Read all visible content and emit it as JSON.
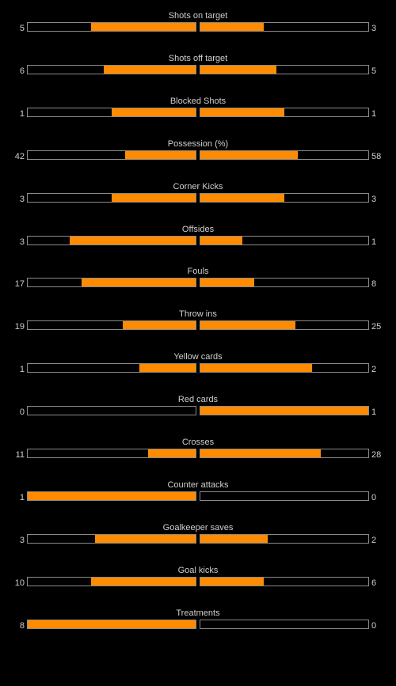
{
  "colors": {
    "background": "#000000",
    "text": "#cfcfcf",
    "bar_border": "#8a8a8a",
    "bar_fill": "#ff8c00"
  },
  "stats": [
    {
      "label": "Shots on target",
      "home": 5,
      "away": 3,
      "home_display": "5",
      "away_display": "3"
    },
    {
      "label": "Shots off target",
      "home": 6,
      "away": 5,
      "home_display": "6",
      "away_display": "5"
    },
    {
      "label": "Blocked Shots",
      "home": 1,
      "away": 1,
      "home_display": "1",
      "away_display": "1"
    },
    {
      "label": "Possession (%)",
      "home": 42,
      "away": 58,
      "home_display": "42",
      "away_display": "58"
    },
    {
      "label": "Corner Kicks",
      "home": 3,
      "away": 3,
      "home_display": "3",
      "away_display": "3"
    },
    {
      "label": "Offsides",
      "home": 3,
      "away": 1,
      "home_display": "3",
      "away_display": "1"
    },
    {
      "label": "Fouls",
      "home": 17,
      "away": 8,
      "home_display": "17",
      "away_display": "8"
    },
    {
      "label": "Throw ins",
      "home": 19,
      "away": 25,
      "home_display": "19",
      "away_display": "25"
    },
    {
      "label": "Yellow cards",
      "home": 1,
      "away": 2,
      "home_display": "1",
      "away_display": "2"
    },
    {
      "label": "Red cards",
      "home": 0,
      "away": 1,
      "home_display": "0",
      "away_display": "1"
    },
    {
      "label": "Crosses",
      "home": 11,
      "away": 28,
      "home_display": "11",
      "away_display": "28"
    },
    {
      "label": "Counter attacks",
      "home": 1,
      "away": 0,
      "home_display": "1",
      "away_display": "0"
    },
    {
      "label": "Goalkeeper saves",
      "home": 3,
      "away": 2,
      "home_display": "3",
      "away_display": "2"
    },
    {
      "label": "Goal kicks",
      "home": 10,
      "away": 6,
      "home_display": "10",
      "away_display": "6"
    },
    {
      "label": "Treatments",
      "home": 8,
      "away": 0,
      "home_display": "8",
      "away_display": "0"
    }
  ]
}
